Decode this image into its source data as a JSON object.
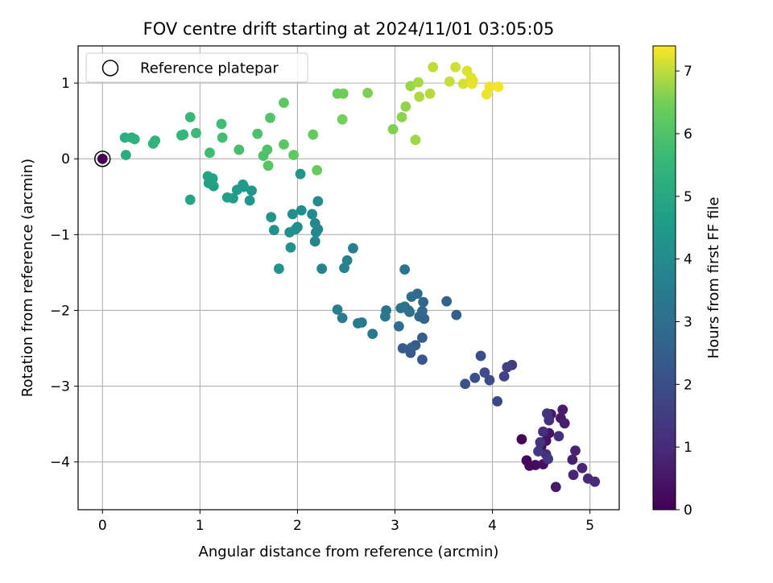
{
  "chart_data": {
    "type": "scatter",
    "title": "FOV centre drift starting at 2024/11/01 03:05:05",
    "xlabel": "Angular distance from reference (arcmin)",
    "ylabel": "Rotation from reference (arcmin)",
    "xlim": [
      -0.25,
      5.3
    ],
    "ylim": [
      -4.63,
      1.49
    ],
    "xticks": [
      0,
      1,
      2,
      3,
      4,
      5
    ],
    "yticks": [
      -4,
      -3,
      -2,
      -1,
      0,
      1
    ],
    "x_tick_labels": [
      "0",
      "1",
      "2",
      "3",
      "4",
      "5"
    ],
    "y_tick_labels": [
      "−4",
      "−3",
      "−2",
      "−1",
      "0",
      "1"
    ],
    "grid": true,
    "legend": {
      "placement": "top-left",
      "entries": [
        "Reference platepar"
      ]
    },
    "colorbar": {
      "label": "Hours from first FF file",
      "colormap": "viridis",
      "range": [
        0,
        7.4
      ],
      "ticks": [
        0,
        1,
        2,
        3,
        4,
        5,
        6,
        7
      ],
      "tick_labels": [
        "0",
        "1",
        "2",
        "3",
        "4",
        "5",
        "6",
        "7"
      ]
    },
    "reference_point": {
      "x": 0,
      "y": 0,
      "hours": 0.0
    },
    "points": [
      [
        4.3,
        -3.7,
        0.1
      ],
      [
        4.35,
        -3.98,
        0.15
      ],
      [
        4.38,
        -4.05,
        0.2
      ],
      [
        4.44,
        -4.04,
        0.25
      ],
      [
        4.5,
        -3.8,
        0.3
      ],
      [
        4.52,
        -4.03,
        0.35
      ],
      [
        4.55,
        -3.72,
        0.4
      ],
      [
        4.58,
        -3.62,
        0.45
      ],
      [
        4.6,
        -3.37,
        0.5
      ],
      [
        4.65,
        -4.33,
        0.55
      ],
      [
        4.7,
        -3.42,
        0.6
      ],
      [
        4.72,
        -3.31,
        0.65
      ],
      [
        4.74,
        -3.49,
        0.7
      ],
      [
        4.82,
        -3.97,
        0.75
      ],
      [
        4.85,
        -3.85,
        0.8
      ],
      [
        4.83,
        -4.17,
        0.85
      ],
      [
        4.92,
        -4.08,
        0.9
      ],
      [
        4.98,
        -4.22,
        0.95
      ],
      [
        5.05,
        -4.26,
        1.0
      ],
      [
        4.55,
        -3.9,
        1.05
      ],
      [
        4.52,
        -3.6,
        1.1
      ],
      [
        4.58,
        -3.45,
        1.15
      ],
      [
        4.68,
        -3.66,
        1.2
      ],
      [
        4.49,
        -3.74,
        1.25
      ],
      [
        4.56,
        -3.36,
        1.3
      ],
      [
        4.57,
        -3.96,
        1.35
      ],
      [
        4.47,
        -3.86,
        1.4
      ],
      [
        4.2,
        -2.72,
        1.5
      ],
      [
        4.15,
        -2.75,
        1.6
      ],
      [
        4.12,
        -2.87,
        1.7
      ],
      [
        4.05,
        -3.2,
        1.8
      ],
      [
        3.97,
        -2.92,
        1.9
      ],
      [
        3.92,
        -2.82,
        1.95
      ],
      [
        3.88,
        -2.6,
        2.0
      ],
      [
        3.82,
        -2.89,
        2.05
      ],
      [
        3.72,
        -2.97,
        2.1
      ],
      [
        3.28,
        -2.65,
        2.2
      ],
      [
        3.16,
        -2.56,
        2.3
      ],
      [
        3.21,
        -2.46,
        2.35
      ],
      [
        3.08,
        -2.5,
        2.4
      ],
      [
        3.28,
        -2.36,
        2.45
      ],
      [
        3.17,
        -2.49,
        2.5
      ],
      [
        3.63,
        -2.06,
        2.55
      ],
      [
        3.53,
        -1.88,
        2.6
      ],
      [
        3.3,
        -2.11,
        2.65
      ],
      [
        3.25,
        -2.08,
        2.7
      ],
      [
        3.29,
        -1.89,
        2.75
      ],
      [
        3.28,
        -2.01,
        2.8
      ],
      [
        3.23,
        -1.78,
        2.85
      ],
      [
        3.17,
        -1.82,
        2.9
      ],
      [
        3.14,
        -2.0,
        2.95
      ],
      [
        3.04,
        -2.21,
        3.0
      ],
      [
        3.1,
        -1.95,
        3.05
      ],
      [
        3.15,
        -2.02,
        3.1
      ],
      [
        3.06,
        -1.97,
        3.15
      ],
      [
        3.1,
        -1.46,
        3.2
      ],
      [
        2.91,
        -2.0,
        3.25
      ],
      [
        2.9,
        -2.08,
        3.3
      ],
      [
        2.77,
        -2.31,
        3.35
      ],
      [
        2.66,
        -2.16,
        3.4
      ],
      [
        2.62,
        -2.17,
        3.45
      ],
      [
        2.46,
        -2.1,
        3.5
      ],
      [
        2.41,
        -1.99,
        3.55
      ],
      [
        2.57,
        -1.18,
        3.6
      ],
      [
        2.51,
        -1.34,
        3.65
      ],
      [
        2.48,
        -1.44,
        3.7
      ],
      [
        2.25,
        -1.45,
        3.75
      ],
      [
        2.18,
        -1.09,
        3.8
      ],
      [
        2.19,
        -0.97,
        3.85
      ],
      [
        2.21,
        -0.93,
        3.88
      ],
      [
        2.18,
        -0.85,
        3.9
      ],
      [
        2.15,
        -0.73,
        3.95
      ],
      [
        2.21,
        -0.56,
        4.0
      ],
      [
        2.04,
        -0.68,
        4.05
      ],
      [
        2.0,
        -0.9,
        4.1
      ],
      [
        1.98,
        -0.93,
        4.12
      ],
      [
        1.95,
        -0.73,
        4.15
      ],
      [
        1.92,
        -0.97,
        4.18
      ],
      [
        1.93,
        -1.17,
        4.2
      ],
      [
        1.81,
        -1.45,
        4.22
      ],
      [
        1.76,
        -0.94,
        4.25
      ],
      [
        1.73,
        -0.77,
        4.28
      ],
      [
        2.03,
        -0.2,
        4.3
      ],
      [
        1.51,
        -0.55,
        4.35
      ],
      [
        1.53,
        -0.42,
        4.4
      ],
      [
        1.45,
        -0.37,
        4.45
      ],
      [
        1.44,
        -0.34,
        4.5
      ],
      [
        1.38,
        -0.41,
        4.55
      ],
      [
        1.34,
        -0.52,
        4.6
      ],
      [
        1.28,
        -0.51,
        4.65
      ],
      [
        1.14,
        -0.36,
        4.7
      ],
      [
        1.09,
        -0.32,
        4.75
      ],
      [
        1.13,
        -0.26,
        4.8
      ],
      [
        1.08,
        -0.23,
        4.85
      ],
      [
        0.9,
        -0.54,
        4.9
      ],
      [
        0.24,
        0.05,
        5.1
      ],
      [
        0.23,
        0.28,
        5.2
      ],
      [
        0.3,
        0.28,
        5.25
      ],
      [
        0.33,
        0.26,
        5.3
      ],
      [
        0.52,
        0.2,
        5.4
      ],
      [
        0.54,
        0.24,
        5.45
      ],
      [
        0.81,
        0.31,
        5.5
      ],
      [
        0.83,
        0.32,
        5.55
      ],
      [
        0.9,
        0.55,
        5.6
      ],
      [
        0.96,
        0.34,
        5.65
      ],
      [
        1.1,
        0.08,
        5.7
      ],
      [
        1.22,
        0.46,
        5.75
      ],
      [
        1.23,
        0.28,
        5.8
      ],
      [
        1.4,
        0.12,
        5.85
      ],
      [
        1.59,
        0.33,
        5.9
      ],
      [
        1.65,
        0.04,
        5.95
      ],
      [
        1.69,
        0.12,
        6.0
      ],
      [
        1.72,
        0.54,
        6.05
      ],
      [
        1.7,
        -0.09,
        6.1
      ],
      [
        1.86,
        0.19,
        6.15
      ],
      [
        1.86,
        0.74,
        6.2
      ],
      [
        1.96,
        0.05,
        6.25
      ],
      [
        2.16,
        0.32,
        6.3
      ],
      [
        2.2,
        -0.15,
        6.35
      ],
      [
        2.41,
        0.86,
        6.4
      ],
      [
        2.47,
        0.86,
        6.45
      ],
      [
        2.46,
        0.52,
        6.5
      ],
      [
        2.72,
        0.87,
        6.55
      ],
      [
        2.98,
        0.39,
        6.6
      ],
      [
        3.07,
        0.55,
        6.65
      ],
      [
        3.11,
        0.69,
        6.7
      ],
      [
        3.16,
        0.96,
        6.75
      ],
      [
        3.21,
        0.25,
        6.8
      ],
      [
        3.24,
        1.01,
        6.85
      ],
      [
        3.25,
        0.82,
        6.9
      ],
      [
        3.36,
        0.86,
        6.95
      ],
      [
        3.39,
        1.21,
        7.0
      ],
      [
        3.56,
        1.02,
        7.05
      ],
      [
        3.62,
        1.21,
        7.1
      ],
      [
        3.7,
        0.99,
        7.15
      ],
      [
        3.74,
        1.16,
        7.18
      ],
      [
        3.78,
        1.07,
        7.2
      ],
      [
        3.8,
        1.03,
        7.22
      ],
      [
        3.79,
        0.99,
        7.25
      ],
      [
        3.94,
        0.85,
        7.28
      ],
      [
        3.97,
        0.95,
        7.3
      ],
      [
        4.06,
        0.95,
        7.33
      ]
    ]
  }
}
